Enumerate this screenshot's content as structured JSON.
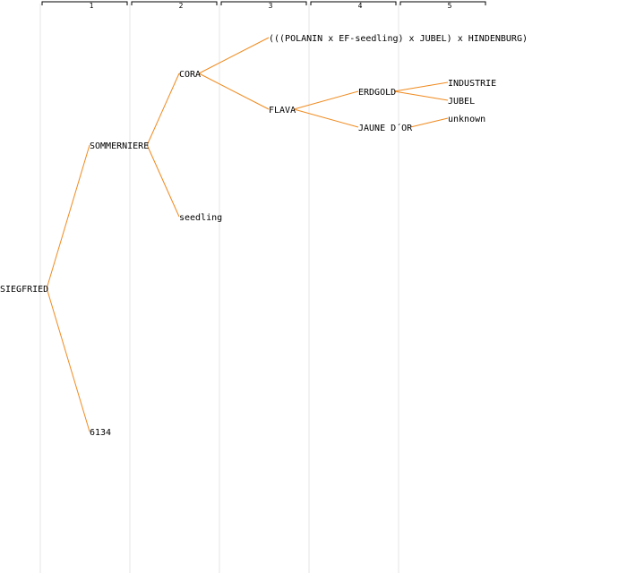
{
  "colors": {
    "edge": "#f08a1e",
    "column_line": "#e6e6e6",
    "bracket": "#000000",
    "text": "#000000"
  },
  "generations": [
    "1",
    "2",
    "3",
    "4",
    "5"
  ],
  "tree": {
    "label": "SIEGFRIED",
    "children": [
      {
        "label": "SOMMERNIERE",
        "children": [
          {
            "label": "CORA",
            "children": [
              {
                "label": "(((POLANIN x EF-seedling) x JUBEL) x HINDENBURG)"
              },
              {
                "label": "FLAVA",
                "children": [
                  {
                    "label": "ERDGOLD",
                    "children": [
                      {
                        "label": "INDUSTRIE"
                      },
                      {
                        "label": "JUBEL"
                      }
                    ]
                  },
                  {
                    "label": "JAUNE D´OR",
                    "children": [
                      {
                        "label": "unknown"
                      }
                    ]
                  }
                ]
              }
            ]
          },
          {
            "label": "seedling"
          }
        ]
      },
      {
        "label": "6134"
      }
    ]
  }
}
